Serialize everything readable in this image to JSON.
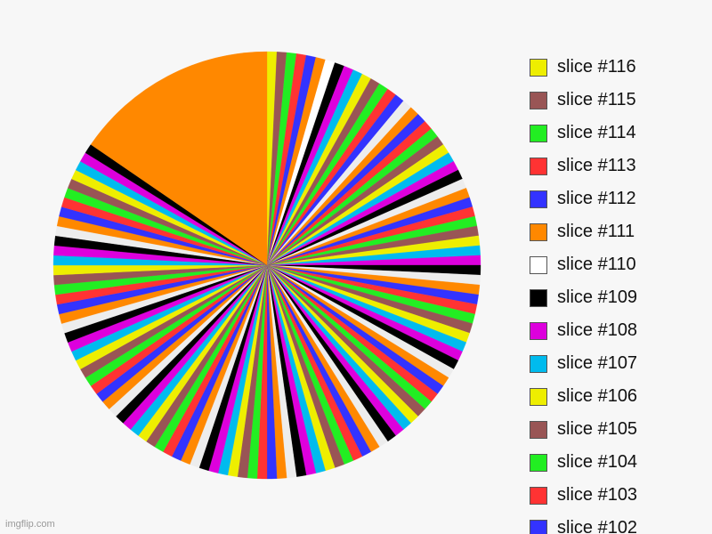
{
  "chart_data": {
    "type": "pie",
    "title": "",
    "start_angle_deg": 0,
    "direction": "clockwise",
    "color_cycle": [
      "#ededed",
      "#ff8800",
      "#3333ff",
      "#ff3333",
      "#22ee22",
      "#995555",
      "#eeee00",
      "#00bbee",
      "#dd00dd",
      "#000000"
    ],
    "slices_in_draw_order": [
      {
        "label": "slice #116",
        "value": 1,
        "color": "#eeee00"
      },
      {
        "label": "slice #115",
        "value": 1,
        "color": "#995555"
      },
      {
        "label": "slice #114",
        "value": 1,
        "color": "#22ee22"
      },
      {
        "label": "slice #113",
        "value": 1,
        "color": "#ff3333"
      },
      {
        "label": "slice #112",
        "value": 1,
        "color": "#3333ff"
      },
      {
        "label": "slice #111",
        "value": 1,
        "color": "#ff8800"
      },
      {
        "label": "slice #110",
        "value": 1,
        "color": "#ffffff"
      },
      {
        "label": "slice #109",
        "value": 1,
        "color": "#000000"
      },
      {
        "label": "slice #108",
        "value": 1,
        "color": "#dd00dd"
      },
      {
        "label": "slice #107",
        "value": 1,
        "color": "#00bbee"
      },
      {
        "label": "slice #106",
        "value": 1,
        "color": "#eeee00"
      },
      {
        "label": "slice #105",
        "value": 1,
        "color": "#995555"
      },
      {
        "label": "slice #104",
        "value": 1,
        "color": "#22ee22"
      },
      {
        "label": "slice #103",
        "value": 1,
        "color": "#ff3333"
      },
      {
        "label": "slice #102",
        "value": 1,
        "color": "#3333ff"
      }
    ],
    "other_slices": {
      "count": 100,
      "value_each": 1
    },
    "final_slice": {
      "value": 21,
      "color": "#ff8800"
    }
  },
  "legend": {
    "items": [
      {
        "label": "slice #116",
        "color": "#eeee00"
      },
      {
        "label": "slice #115",
        "color": "#995555"
      },
      {
        "label": "slice #114",
        "color": "#22ee22"
      },
      {
        "label": "slice #113",
        "color": "#ff3333"
      },
      {
        "label": "slice #112",
        "color": "#3333ff"
      },
      {
        "label": "slice #111",
        "color": "#ff8800"
      },
      {
        "label": "slice #110",
        "color": "#ffffff"
      },
      {
        "label": "slice #109",
        "color": "#000000"
      },
      {
        "label": "slice #108",
        "color": "#dd00dd"
      },
      {
        "label": "slice #107",
        "color": "#00bbee"
      },
      {
        "label": "slice #106",
        "color": "#eeee00"
      },
      {
        "label": "slice #105",
        "color": "#995555"
      },
      {
        "label": "slice #104",
        "color": "#22ee22"
      },
      {
        "label": "slice #103",
        "color": "#ff3333"
      },
      {
        "label": "slice #102",
        "color": "#3333ff"
      }
    ]
  },
  "watermark": {
    "text": "imgflip.com"
  },
  "colors": {
    "background": "#f7f7f7"
  }
}
